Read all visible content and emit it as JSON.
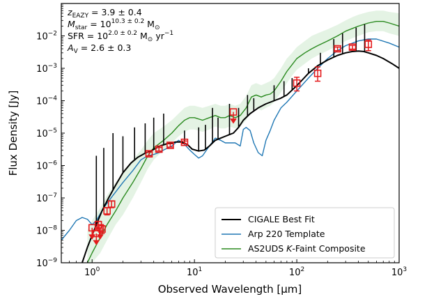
{
  "chart_data": {
    "type": "line",
    "xlabel": "Observed Wavelength [μm]",
    "ylabel": "Flux Density [Jy]",
    "xscale": "log",
    "yscale": "log",
    "xlim": [
      0.5,
      1000
    ],
    "ylim": [
      1e-09,
      0.1
    ],
    "x_ticks": [
      {
        "value": 1,
        "label": "10",
        "exp": "0"
      },
      {
        "value": 10,
        "label": "10",
        "exp": "1"
      },
      {
        "value": 100,
        "label": "10",
        "exp": "2"
      },
      {
        "value": 1000,
        "label": "10",
        "exp": "3"
      }
    ],
    "y_ticks": [
      {
        "value": 1e-09,
        "label": "10",
        "exp": "−9"
      },
      {
        "value": 1e-08,
        "label": "10",
        "exp": "−8"
      },
      {
        "value": 1e-07,
        "label": "10",
        "exp": "−7"
      },
      {
        "value": 1e-06,
        "label": "10",
        "exp": "−6"
      },
      {
        "value": 1e-05,
        "label": "10",
        "exp": "−5"
      },
      {
        "value": 0.0001,
        "label": "10",
        "exp": "−4"
      },
      {
        "value": 0.001,
        "label": "10",
        "exp": "−3"
      },
      {
        "value": 0.01,
        "label": "10",
        "exp": "−2"
      }
    ],
    "annotations": [
      {
        "main": "z",
        "sub": "EAZY",
        "rest": " = 3.9 ± 0.4"
      },
      {
        "main": "M",
        "sub": "star",
        "rest": " = 10",
        "sup": "10.3 ± 0.2",
        "tail": " M",
        "tailsub": "⊙"
      },
      {
        "main": "SFR",
        "sub": "",
        "rest": " = 10",
        "sup": "2.0 ± 0.2",
        "tail": " M",
        "tailsub": "⊙",
        "tail2": " yr",
        "tail2sup": "−1"
      },
      {
        "main": "A",
        "sub": "V",
        "rest": " = 2.6 ± 0.3"
      }
    ],
    "legend_position": "bottom-right",
    "series": [
      {
        "name": "CIGALE Best Fit",
        "color": "#000000",
        "x": [
          0.8,
          0.9,
          1.0,
          1.1,
          1.25,
          1.45,
          1.7,
          2.0,
          2.4,
          2.8,
          3.3,
          3.9,
          4.6,
          5.5,
          6.5,
          7.5,
          8.5,
          9.5,
          11,
          12.5,
          14,
          16,
          18,
          20,
          22,
          24,
          27,
          30,
          35,
          42,
          50,
          60,
          70,
          80,
          95,
          110,
          130,
          160,
          200,
          250,
          300,
          350,
          400,
          450,
          500,
          600,
          700,
          850,
          1000
        ],
        "y": [
          1e-09,
          3e-09,
          7e-09,
          1.5e-08,
          4e-08,
          1e-07,
          2.5e-07,
          6e-07,
          1.2e-06,
          1.8e-06,
          2.4e-06,
          3e-06,
          4e-06,
          4.8e-06,
          5.3e-06,
          5.3e-06,
          4.5e-06,
          3.2e-06,
          2.8e-06,
          3e-06,
          4e-06,
          6e-06,
          7e-06,
          8e-06,
          9e-06,
          1e-05,
          1.5e-05,
          2.5e-05,
          4e-05,
          6e-05,
          8e-05,
          0.0001,
          0.00012,
          0.00015,
          0.00025,
          0.0004,
          0.0007,
          0.0012,
          0.0018,
          0.0025,
          0.003,
          0.0033,
          0.0034,
          0.0033,
          0.003,
          0.0025,
          0.002,
          0.0014,
          0.001
        ],
        "lines": [
          {
            "x": 1.1,
            "y": 2e-06
          },
          {
            "x": 1.3,
            "y": 3.5e-06
          },
          {
            "x": 1.6,
            "y": 1e-05
          },
          {
            "x": 2.0,
            "y": 8e-06
          },
          {
            "x": 2.6,
            "y": 1.5e-05
          },
          {
            "x": 3.3,
            "y": 2e-05
          },
          {
            "x": 4.0,
            "y": 3e-05
          },
          {
            "x": 5.0,
            "y": 4e-05
          },
          {
            "x": 8.0,
            "y": 1.2e-05
          },
          {
            "x": 11,
            "y": 1.5e-05
          },
          {
            "x": 12.8,
            "y": 1.8e-05
          },
          {
            "x": 15,
            "y": 6e-05
          },
          {
            "x": 17,
            "y": 3e-05
          },
          {
            "x": 22,
            "y": 8e-05
          },
          {
            "x": 27,
            "y": 6e-05
          },
          {
            "x": 33,
            "y": 0.00015
          },
          {
            "x": 38,
            "y": 0.00012
          },
          {
            "x": 60,
            "y": 0.0003
          },
          {
            "x": 75,
            "y": 0.0004
          },
          {
            "x": 90,
            "y": 0.0005
          },
          {
            "x": 130,
            "y": 0.001
          },
          {
            "x": 170,
            "y": 0.003
          },
          {
            "x": 230,
            "y": 0.008
          },
          {
            "x": 280,
            "y": 0.012
          },
          {
            "x": 380,
            "y": 0.018
          },
          {
            "x": 460,
            "y": 0.023
          }
        ]
      },
      {
        "name": "Arp 220 Template",
        "color": "#1f77b4",
        "x": [
          0.5,
          0.6,
          0.7,
          0.8,
          0.9,
          1.0,
          1.1,
          1.3,
          1.6,
          2.0,
          2.5,
          3.0,
          3.5,
          4.0,
          4.5,
          5.0,
          6.0,
          7.0,
          8.0,
          9.0,
          10,
          11,
          12,
          14,
          16,
          18,
          20,
          25,
          28,
          30,
          32,
          35,
          38,
          42,
          46,
          50,
          55,
          60,
          70,
          80,
          100,
          130,
          160,
          200,
          250,
          300,
          400,
          500,
          600,
          800,
          1000
        ],
        "y": [
          5e-09,
          1e-08,
          2e-08,
          2.5e-08,
          2.2e-08,
          1.5e-08,
          2e-08,
          5e-08,
          1.2e-07,
          3e-07,
          7e-07,
          1.5e-06,
          2e-06,
          2.2e-06,
          2.5e-06,
          3e-06,
          4e-06,
          6e-06,
          4.5e-06,
          3e-06,
          2.2e-06,
          1.7e-06,
          2e-06,
          4e-06,
          7e-06,
          6e-06,
          5e-06,
          5e-06,
          4e-06,
          1.3e-05,
          1.5e-05,
          1.2e-05,
          5e-06,
          2.5e-06,
          2e-06,
          6e-06,
          1.2e-05,
          2.5e-05,
          6e-05,
          9e-05,
          0.0002,
          0.0005,
          0.001,
          0.002,
          0.0035,
          0.005,
          0.007,
          0.008,
          0.008,
          0.006,
          0.0045
        ]
      },
      {
        "name": "AS2UDS K-Faint Composite",
        "color": "#2a8a1f",
        "x": [
          0.9,
          1.0,
          1.2,
          1.4,
          1.7,
          2.0,
          2.5,
          3.0,
          3.5,
          4.0,
          5.0,
          6.0,
          7.0,
          8.0,
          9.0,
          10,
          12,
          14,
          16,
          18,
          20,
          22,
          25,
          28,
          32,
          36,
          40,
          45,
          50,
          55,
          60,
          70,
          80,
          90,
          100,
          120,
          140,
          160,
          200,
          250,
          300,
          350,
          400,
          500,
          600,
          700,
          800,
          1000
        ],
        "y": [
          1e-09,
          2e-09,
          6e-09,
          1.5e-08,
          4e-08,
          1e-07,
          3e-07,
          8e-07,
          2e-06,
          3.5e-06,
          6e-06,
          1e-05,
          1.7e-05,
          2.5e-05,
          3e-05,
          3e-05,
          2.5e-05,
          3e-05,
          3.5e-05,
          3e-05,
          3e-05,
          3.5e-05,
          3e-05,
          3.5e-05,
          6e-05,
          0.00013,
          0.00015,
          0.00013,
          0.00015,
          0.00016,
          0.0002,
          0.0004,
          0.0008,
          0.0013,
          0.002,
          0.003,
          0.004,
          0.005,
          0.007,
          0.01,
          0.014,
          0.017,
          0.02,
          0.025,
          0.028,
          0.028,
          0.025,
          0.02
        ],
        "band_lower": [
          1e-09,
          1e-09,
          2e-09,
          5e-09,
          1.5e-08,
          3e-08,
          1e-07,
          3e-07,
          8e-07,
          1.5e-06,
          3e-06,
          5e-06,
          8e-06,
          1.1e-05,
          1.3e-05,
          1.3e-05,
          1.1e-05,
          1.3e-05,
          1.6e-05,
          1.4e-05,
          1.4e-05,
          1.6e-05,
          1.4e-05,
          1.6e-05,
          2.5e-05,
          5e-05,
          6e-05,
          5e-05,
          6e-05,
          7e-05,
          9e-05,
          0.00018,
          0.00035,
          0.0006,
          0.0009,
          0.0014,
          0.002,
          0.0025,
          0.0035,
          0.005,
          0.007,
          0.0085,
          0.01,
          0.013,
          0.014,
          0.014,
          0.012,
          0.01
        ],
        "band_upper": [
          1e-08,
          2e-08,
          5e-08,
          1.2e-07,
          3e-07,
          6e-07,
          1.5e-06,
          3e-06,
          6e-06,
          1e-05,
          1.6e-05,
          2.5e-05,
          4e-05,
          6e-05,
          7e-05,
          7e-05,
          6e-05,
          7e-05,
          8e-05,
          7e-05,
          7e-05,
          8e-05,
          7e-05,
          8e-05,
          0.00014,
          0.0003,
          0.00035,
          0.0003,
          0.00035,
          0.0004,
          0.0005,
          0.001,
          0.002,
          0.003,
          0.0045,
          0.007,
          0.01,
          0.012,
          0.016,
          0.022,
          0.03,
          0.038,
          0.045,
          0.055,
          0.06,
          0.06,
          0.055,
          0.05
        ]
      }
    ],
    "detections": [
      {
        "x": 1.15,
        "y": 1.5e-08,
        "yerr_lo": 4e-09,
        "yerr_hi": 4e-09
      },
      {
        "x": 1.25,
        "y": 1.1e-08,
        "yerr_lo": 3e-09,
        "yerr_hi": 3e-09
      },
      {
        "x": 1.4,
        "y": 4e-08,
        "yerr_lo": 1e-08,
        "yerr_hi": 1e-08
      },
      {
        "x": 1.55,
        "y": 6.5e-08,
        "yerr_lo": 1.5e-08,
        "yerr_hi": 1.5e-08
      },
      {
        "x": 3.6,
        "y": 2.3e-06,
        "yerr_lo": 3e-07,
        "yerr_hi": 3e-07
      },
      {
        "x": 4.5,
        "y": 3.2e-06,
        "yerr_lo": 4e-07,
        "yerr_hi": 4e-07
      },
      {
        "x": 5.8,
        "y": 4.2e-06,
        "yerr_lo": 5e-07,
        "yerr_hi": 5e-07
      },
      {
        "x": 8.0,
        "y": 5.2e-06,
        "yerr_lo": 5e-07,
        "yerr_hi": 5e-07
      },
      {
        "x": 100,
        "y": 0.00035,
        "yerr_lo": 0.00015,
        "yerr_hi": 0.00018
      },
      {
        "x": 160,
        "y": 0.0007,
        "yerr_lo": 0.0003,
        "yerr_hi": 0.0004
      },
      {
        "x": 250,
        "y": 0.004,
        "yerr_lo": 0.0005,
        "yerr_hi": 0.0005
      },
      {
        "x": 350,
        "y": 0.0045,
        "yerr_lo": 0.0006,
        "yerr_hi": 0.0006
      },
      {
        "x": 500,
        "y": 0.0055,
        "yerr_lo": 0.002,
        "yerr_hi": 0.002
      }
    ],
    "upper_limits": [
      {
        "x": 1.0,
        "y": 1.2e-08
      },
      {
        "x": 1.1,
        "y": 8e-09
      },
      {
        "x": 1.2,
        "y": 1.2e-08
      },
      {
        "x": 24,
        "y": 4.5e-05
      }
    ],
    "marker_color": "#e41a1c"
  },
  "legend": [
    {
      "label": "CIGALE Best Fit",
      "color": "#000000"
    },
    {
      "label": "Arp 220 Template",
      "color": "#1f77b4"
    },
    {
      "label": "AS2UDS ",
      "italic": "K",
      "rest": "-Faint Composite",
      "color": "#2a8a1f"
    }
  ]
}
